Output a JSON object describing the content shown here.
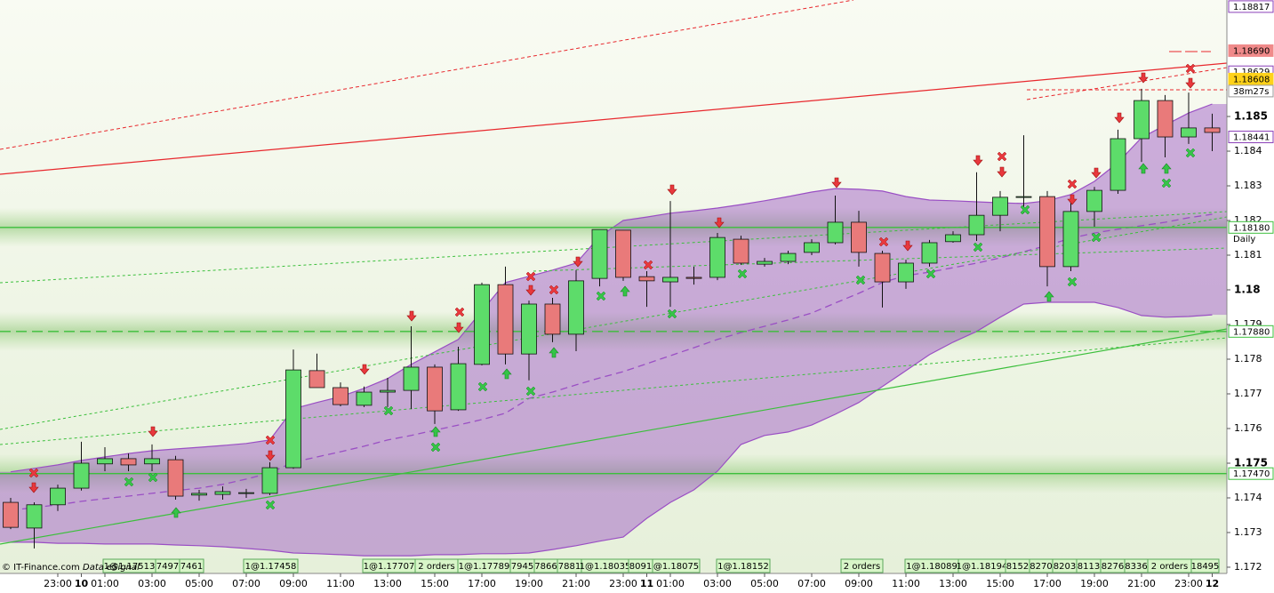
{
  "chart_data": {
    "type": "candlestick",
    "categories": [
      null,
      null,
      "23:00",
      "10",
      "01:00",
      null,
      "03:00",
      null,
      "05:00",
      null,
      "07:00",
      null,
      "09:00",
      null,
      "11:00",
      null,
      "13:00",
      null,
      "15:00",
      null,
      "17:00",
      null,
      "19:00",
      null,
      "21:00",
      null,
      "23:00",
      "11",
      "01:00",
      null,
      "03:00",
      null,
      "05:00",
      null,
      "07:00",
      null,
      "09:00",
      null,
      "11:00",
      null,
      "13:00",
      null,
      "15:00",
      null,
      "17:00",
      null,
      "19:00",
      null,
      "21:00",
      null,
      "23:00",
      "12"
    ],
    "open": [
      1.17387,
      1.17313,
      1.1738,
      1.17428,
      1.17498,
      1.17513,
      1.17498,
      1.1751,
      1.17408,
      1.1741,
      1.17413,
      1.17413,
      1.17487,
      1.17767,
      1.17718,
      1.17667,
      1.17705,
      1.1771,
      1.17777,
      1.17654,
      1.17785,
      1.18015,
      1.17815,
      1.17959,
      1.17872,
      1.18033,
      1.18172,
      1.18038,
      1.18023,
      1.18036,
      1.18036,
      1.18146,
      1.18074,
      1.18082,
      1.18108,
      1.18136,
      1.18195,
      1.18105,
      1.18023,
      1.18077,
      1.18139,
      1.18159,
      1.18215,
      1.18267,
      1.18269,
      1.18067,
      1.18226,
      1.18287,
      1.18436,
      1.18546,
      1.18441,
      1.18467
    ],
    "high": [
      1.174,
      1.17387,
      1.17438,
      1.17562,
      1.17546,
      1.17528,
      1.17554,
      1.17521,
      1.17423,
      1.17433,
      1.17426,
      1.17503,
      1.17828,
      1.17816,
      1.17733,
      1.17721,
      1.17746,
      1.17895,
      1.17785,
      1.17836,
      1.18021,
      1.18067,
      1.17969,
      1.17977,
      1.18057,
      1.18174,
      1.18172,
      1.18054,
      1.18256,
      1.18067,
      1.18164,
      1.18156,
      1.18092,
      1.18113,
      1.18146,
      1.18272,
      1.18228,
      1.18113,
      1.18087,
      1.18144,
      1.18169,
      1.18339,
      1.18285,
      1.18446,
      1.18285,
      1.18251,
      1.18297,
      1.18462,
      1.1858,
      1.18562,
      1.18569,
      1.18508
    ],
    "low": [
      1.1731,
      1.17254,
      1.17362,
      1.17421,
      1.17477,
      1.17477,
      1.17477,
      1.17395,
      1.17392,
      1.17395,
      1.174,
      1.17408,
      1.17484,
      1.17718,
      1.17664,
      1.17662,
      1.17662,
      1.17656,
      1.17613,
      1.17651,
      1.17782,
      1.17785,
      1.17739,
      1.17849,
      1.17823,
      1.1801,
      1.18026,
      1.17951,
      1.17951,
      1.18015,
      1.18028,
      1.18072,
      1.18067,
      1.18074,
      1.181,
      1.18131,
      1.18067,
      1.17949,
      1.18003,
      1.18067,
      1.18136,
      1.18141,
      1.18169,
      1.18221,
      1.1801,
      1.18054,
      1.18182,
      1.18277,
      1.18369,
      1.18382,
      1.18421,
      1.184
    ],
    "close": [
      1.17315,
      1.1738,
      1.17428,
      1.175,
      1.17513,
      1.17495,
      1.17513,
      1.17405,
      1.17413,
      1.17418,
      1.17415,
      1.17487,
      1.17769,
      1.17718,
      1.17669,
      1.17705,
      1.1771,
      1.17777,
      1.17651,
      1.17787,
      1.18015,
      1.17815,
      1.17959,
      1.17872,
      1.18026,
      1.18174,
      1.18036,
      1.18026,
      1.18036,
      1.18033,
      1.18151,
      1.18077,
      1.18082,
      1.18105,
      1.18136,
      1.18195,
      1.18108,
      1.18023,
      1.18077,
      1.18136,
      1.18159,
      1.18215,
      1.18267,
      1.18269,
      1.18067,
      1.18226,
      1.18287,
      1.18436,
      1.18546,
      1.18441,
      1.18467,
      1.18454
    ],
    "upper_band": [
      1.17475,
      1.17485,
      1.17495,
      1.17508,
      1.17518,
      1.17528,
      1.17536,
      1.17541,
      1.17546,
      1.17551,
      1.17557,
      1.17567,
      1.17657,
      1.17675,
      1.17692,
      1.17716,
      1.17744,
      1.17785,
      1.17821,
      1.17857,
      1.17939,
      1.18021,
      1.18039,
      1.18057,
      1.18077,
      1.18154,
      1.182,
      1.1821,
      1.18221,
      1.18228,
      1.18236,
      1.18246,
      1.18257,
      1.18269,
      1.18282,
      1.18292,
      1.1829,
      1.18285,
      1.18269,
      1.18259,
      1.18257,
      1.18254,
      1.18251,
      1.18249,
      1.18257,
      1.18275,
      1.18313,
      1.18367,
      1.18439,
      1.18475,
      1.1851,
      1.18536
    ],
    "middle_band": [
      1.17364,
      1.17372,
      1.1738,
      1.1739,
      1.17398,
      1.17405,
      1.17413,
      1.17421,
      1.17428,
      1.17439,
      1.17454,
      1.17472,
      1.17503,
      1.17518,
      1.17533,
      1.17549,
      1.17567,
      1.1758,
      1.17595,
      1.1761,
      1.17626,
      1.17644,
      1.17687,
      1.17705,
      1.17726,
      1.17746,
      1.17764,
      1.17787,
      1.1781,
      1.17833,
      1.17857,
      1.17877,
      1.17895,
      1.17913,
      1.17933,
      1.17962,
      1.1799,
      1.18021,
      1.18041,
      1.18051,
      1.18064,
      1.18077,
      1.18092,
      1.1811,
      1.18128,
      1.18149,
      1.18164,
      1.18175,
      1.18185,
      1.18195,
      1.18208,
      1.18218
    ],
    "lower_band": [
      1.17272,
      1.17272,
      1.17269,
      1.17269,
      1.17267,
      1.17267,
      1.17267,
      1.17264,
      1.17262,
      1.17259,
      1.17254,
      1.17249,
      1.17241,
      1.17239,
      1.17236,
      1.17233,
      1.17233,
      1.17233,
      1.17236,
      1.17236,
      1.17239,
      1.17239,
      1.17241,
      1.17251,
      1.17262,
      1.17275,
      1.17287,
      1.17341,
      1.17387,
      1.17423,
      1.17477,
      1.17554,
      1.1758,
      1.1759,
      1.1761,
      1.17641,
      1.17675,
      1.17721,
      1.17767,
      1.17813,
      1.17849,
      1.1788,
      1.17921,
      1.17959,
      1.17964,
      1.17964,
      1.17964,
      1.17949,
      1.17926,
      1.17921,
      1.17923,
      1.17928
    ],
    "up_color": "#5ddc6a",
    "down_color": "#e97a7a",
    "band_color": "#9a4fc4",
    "ylim": [
      1.17182,
      1.18836
    ],
    "yticks": [
      1.172,
      1.173,
      1.174,
      1.175,
      1.176,
      1.177,
      1.178,
      1.179,
      1.18,
      1.181,
      1.182,
      1.183,
      1.184,
      1.185
    ],
    "levels": [
      {
        "value": 1.1818,
        "label": "1.18180",
        "note": "Daily",
        "color": "#3cbf3c",
        "style": "solid"
      },
      {
        "value": 1.1788,
        "label": "1.17880",
        "color": "#3cbf3c",
        "style": "dashed"
      },
      {
        "value": 1.1747,
        "label": "1.17470",
        "color": "#3cbf3c",
        "style": "solid"
      }
    ],
    "price_labels": [
      {
        "value": 1.18817,
        "color": "#8a3fb8",
        "style": "outline"
      },
      {
        "value": 1.1869,
        "label": "1.18690",
        "color": "#f08a8a",
        "style": "fill"
      },
      {
        "value": 1.18629,
        "color": "#8a3fb8",
        "style": "outline"
      },
      {
        "value": 1.18608,
        "color": "#ffd21a",
        "style": "fill"
      },
      {
        "value": 1.18441,
        "color": "#8a3fb8",
        "style": "outline"
      }
    ],
    "countdown": "38m27s",
    "order_tags": [
      "1@1.17513",
      "7497",
      "7461",
      "1@1.17458",
      "1@1.17707",
      "2 orders",
      "1@1.17789",
      "7945",
      "7866",
      "7881",
      "1@1.18035",
      "8091",
      "@1.18075",
      "1@1.18152",
      "2 orders",
      "1@1.18089",
      "1@1.18194",
      "8152",
      "8270",
      "8203",
      "8113",
      "8276",
      "8336",
      "2 orders",
      "18495"
    ],
    "watermark": "© IT-Finance.com",
    "data_source": "Data eSignal"
  }
}
